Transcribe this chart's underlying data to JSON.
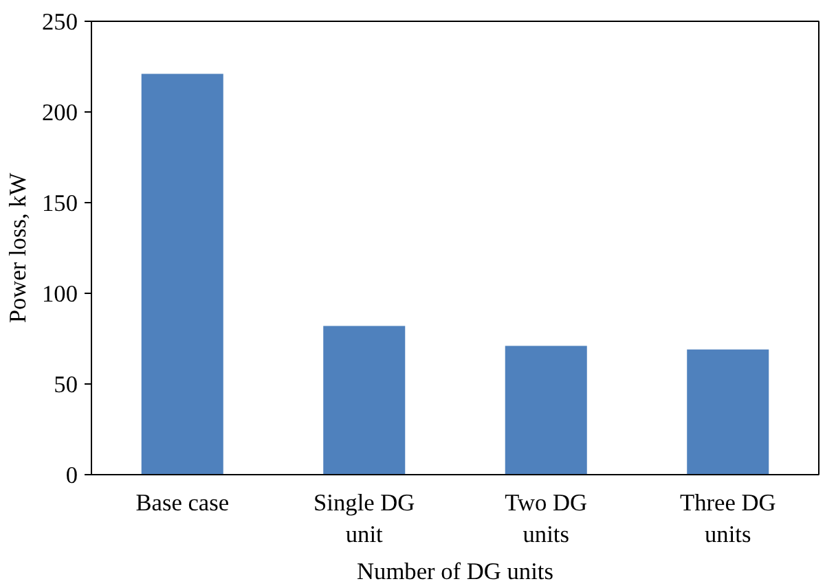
{
  "chart_data": {
    "type": "bar",
    "xlabel": "Number of DG units",
    "ylabel": "Power loss, kW",
    "categories": [
      "Base case",
      "Single DG unit",
      "Two DG units",
      "Three DG units"
    ],
    "values": [
      221,
      82,
      71,
      69
    ],
    "color": "#4f81bd",
    "ylim": [
      0,
      250
    ],
    "yticks": [
      0,
      50,
      100,
      150,
      200,
      250
    ],
    "grid": false
  }
}
